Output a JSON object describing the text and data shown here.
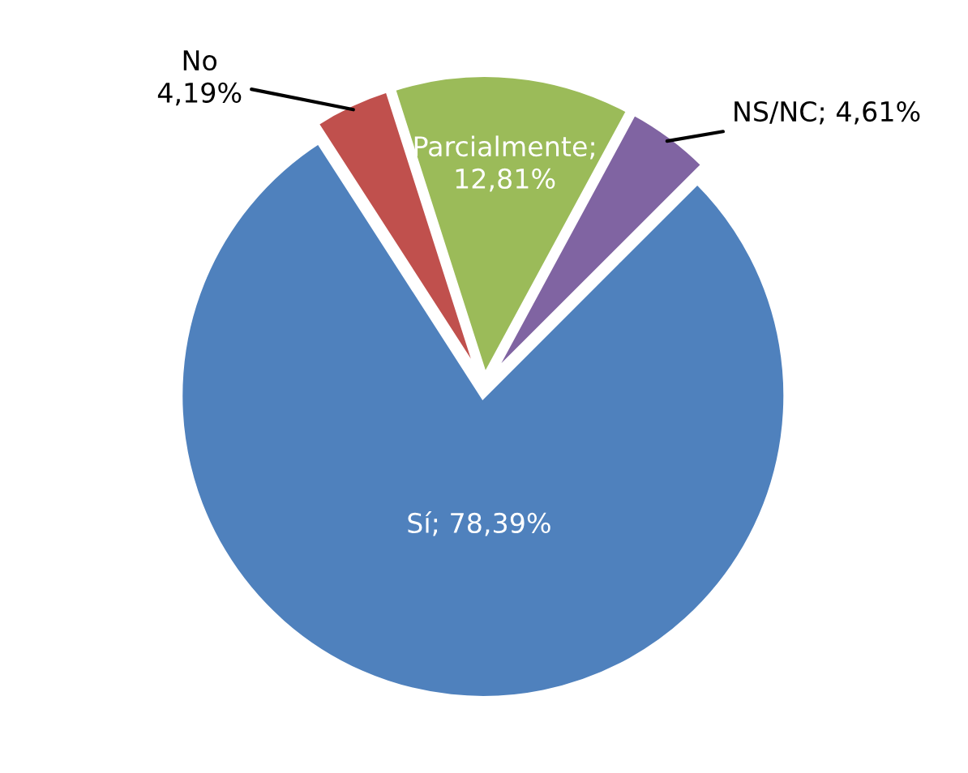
{
  "chart_data": {
    "type": "pie",
    "categories": [
      "Sí",
      "No",
      "Parcialmente",
      "NS/NC"
    ],
    "values": [
      78.39,
      4.19,
      12.81,
      4.61
    ],
    "colors": [
      "#4f81bd",
      "#c0504d",
      "#9bbb59",
      "#8064a2"
    ],
    "value_labels": [
      "; 78,39%",
      "\n4,19%",
      ";\n12,81%",
      "; 4,61%"
    ],
    "legend": false
  }
}
